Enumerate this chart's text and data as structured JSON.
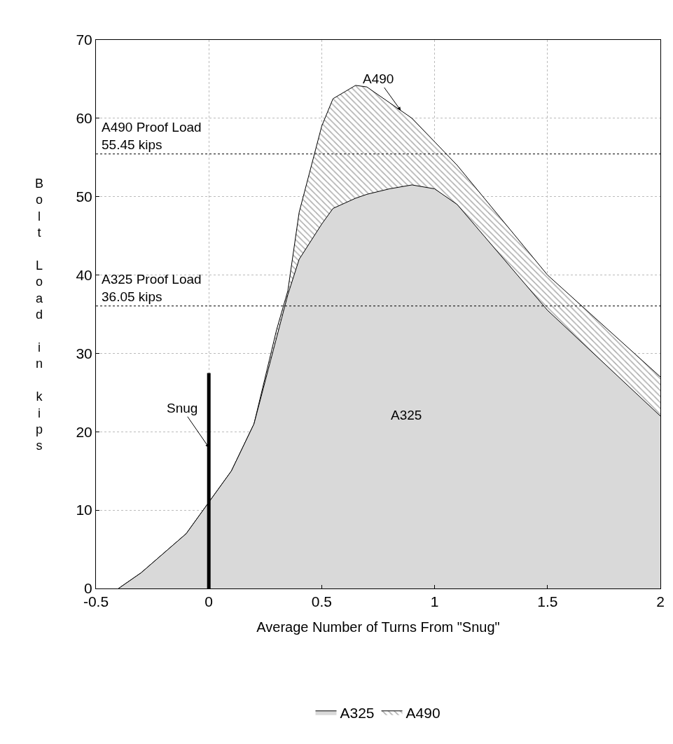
{
  "chart_data": {
    "type": "area",
    "xlabel": "Average Number of Turns From \"Snug\"",
    "ylabel": "Bolt Load in kips",
    "x": [
      -0.4,
      -0.3,
      -0.1,
      0,
      0.1,
      0.2,
      0.3,
      0.35,
      0.4,
      0.5,
      0.55,
      0.65,
      0.7,
      0.8,
      0.9,
      1.0,
      1.1,
      1.5,
      2.0
    ],
    "series": [
      {
        "name": "A490",
        "color": "#555555",
        "values": [
          0,
          2,
          7,
          11,
          15,
          21,
          33,
          38,
          48,
          59,
          62.5,
          64.2,
          64,
          62,
          60,
          57,
          54,
          40,
          27
        ]
      },
      {
        "name": "A325",
        "color": "#d9d9d9",
        "values": [
          0,
          2,
          7,
          11,
          15,
          21,
          32,
          37.5,
          42,
          46.5,
          48.5,
          49.8,
          50.3,
          51,
          51.5,
          51,
          49,
          35.5,
          22
        ]
      },
      {
        "type": "line",
        "color": "#000000",
        "x": [
          0,
          0
        ],
        "values": [
          0,
          27.5
        ]
      }
    ],
    "xlim": [
      -0.5,
      2
    ],
    "xticks": [
      -0.5,
      0,
      0.5,
      1,
      1.5,
      2
    ],
    "ylim": [
      0,
      70
    ],
    "yticks": [
      0,
      10,
      20,
      30,
      40,
      50,
      60,
      70
    ],
    "ref_lines": [
      {
        "axis": "y",
        "value": 55.45,
        "label": "A490 Proof Load\n55.45 kips",
        "line_style": "dotted"
      },
      {
        "axis": "y",
        "value": 36.05,
        "label": "A325 Proof Load\n36.05 kips",
        "line_style": "dotted"
      }
    ],
    "annotations": [
      {
        "text": "A490",
        "x": 0.85,
        "y": 61
      },
      "A325",
      {
        "text": "Snug",
        "x": 0,
        "y": 18
      }
    ],
    "grid": true,
    "legend": "bottom"
  }
}
